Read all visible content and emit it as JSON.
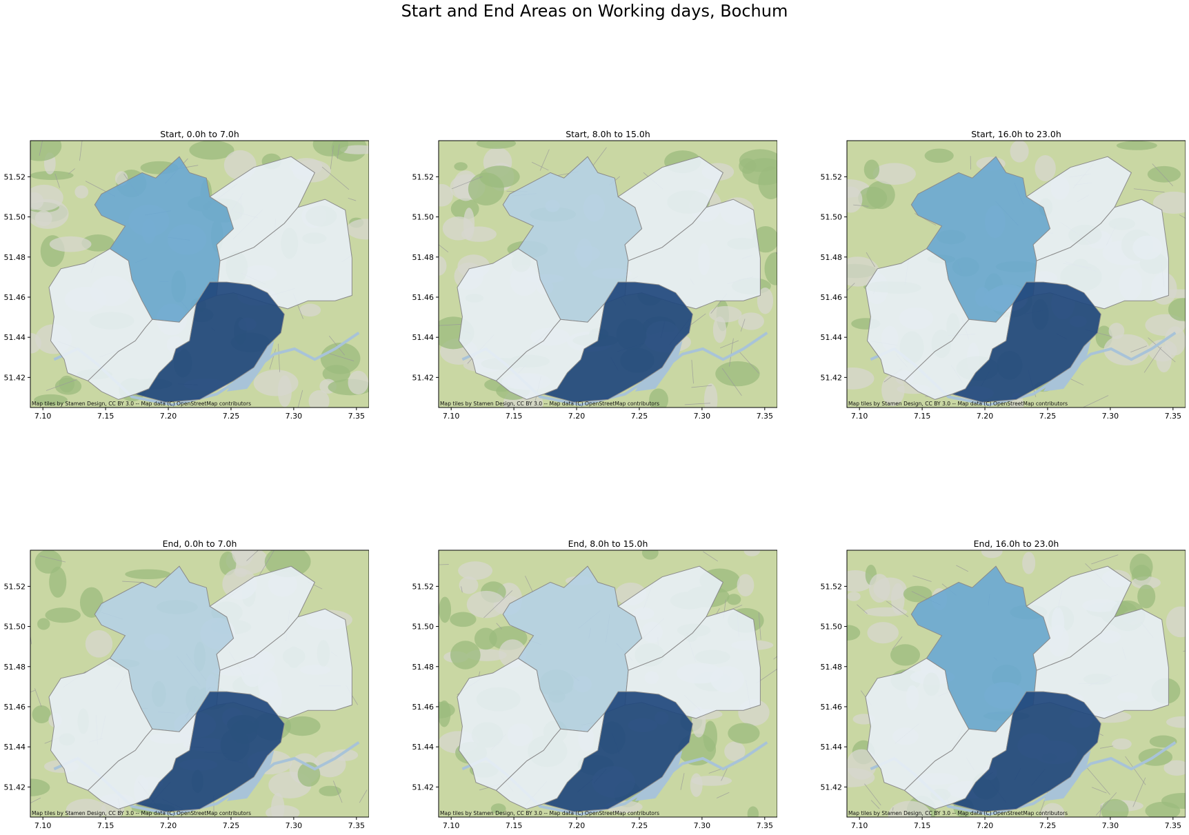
{
  "figure": {
    "title": "Start and End Areas on Working days, Bochum"
  },
  "attribution": "Map tiles by Stamen Design, CC BY 3.0 -- Map data (C) OpenStreetMap contributors",
  "colors": {
    "very_light": "#e8eff6",
    "light": "#b5d2e6",
    "medium": "#6aa8d3",
    "dark": "#21487d",
    "basemap_green": "#c9d7a3",
    "basemap_forest": "#9bbb7d",
    "water": "#a8c3d8",
    "boundary": "#8a8a8a"
  },
  "chart_data": [
    {
      "type": "map",
      "title": "Start, 0.0h to 7.0h",
      "xlim": [
        7.09,
        7.36
      ],
      "ylim": [
        51.405,
        51.538
      ],
      "xticks": [
        "7.10",
        "7.15",
        "7.20",
        "7.25",
        "7.30",
        "7.35"
      ],
      "yticks": [
        "51.42",
        "51.44",
        "51.46",
        "51.48",
        "51.50",
        "51.52"
      ],
      "region_shades": {
        "northwest": "very_light",
        "north_center": "medium",
        "northeast": "very_light",
        "east": "very_light",
        "southwest": "very_light",
        "southeast": "dark"
      }
    },
    {
      "type": "map",
      "title": "Start, 8.0h to 15.0h",
      "xlim": [
        7.09,
        7.36
      ],
      "ylim": [
        51.405,
        51.538
      ],
      "xticks": [
        "7.10",
        "7.15",
        "7.20",
        "7.25",
        "7.30",
        "7.35"
      ],
      "yticks": [
        "51.42",
        "51.44",
        "51.46",
        "51.48",
        "51.50",
        "51.52"
      ],
      "region_shades": {
        "northwest": "very_light",
        "north_center": "light",
        "northeast": "very_light",
        "east": "very_light",
        "southwest": "very_light",
        "southeast": "dark"
      }
    },
    {
      "type": "map",
      "title": "Start, 16.0h to 23.0h",
      "xlim": [
        7.09,
        7.36
      ],
      "ylim": [
        51.405,
        51.538
      ],
      "xticks": [
        "7.10",
        "7.15",
        "7.20",
        "7.25",
        "7.30",
        "7.35"
      ],
      "yticks": [
        "51.42",
        "51.44",
        "51.46",
        "51.48",
        "51.50",
        "51.52"
      ],
      "region_shades": {
        "northwest": "very_light",
        "north_center": "medium",
        "northeast": "very_light",
        "east": "very_light",
        "southwest": "very_light",
        "southeast": "dark"
      }
    },
    {
      "type": "map",
      "title": "End, 0.0h to 7.0h",
      "xlim": [
        7.09,
        7.36
      ],
      "ylim": [
        51.405,
        51.538
      ],
      "xticks": [
        "7.10",
        "7.15",
        "7.20",
        "7.25",
        "7.30",
        "7.35"
      ],
      "yticks": [
        "51.42",
        "51.44",
        "51.46",
        "51.48",
        "51.50",
        "51.52"
      ],
      "region_shades": {
        "northwest": "very_light",
        "north_center": "light",
        "northeast": "very_light",
        "east": "very_light",
        "southwest": "very_light",
        "southeast": "dark"
      }
    },
    {
      "type": "map",
      "title": "End, 8.0h to 15.0h",
      "xlim": [
        7.09,
        7.36
      ],
      "ylim": [
        51.405,
        51.538
      ],
      "xticks": [
        "7.10",
        "7.15",
        "7.20",
        "7.25",
        "7.30",
        "7.35"
      ],
      "yticks": [
        "51.42",
        "51.44",
        "51.46",
        "51.48",
        "51.50",
        "51.52"
      ],
      "region_shades": {
        "northwest": "very_light",
        "north_center": "light",
        "northeast": "very_light",
        "east": "very_light",
        "southwest": "very_light",
        "southeast": "dark"
      }
    },
    {
      "type": "map",
      "title": "End, 16.0h to 23.0h",
      "xlim": [
        7.09,
        7.36
      ],
      "ylim": [
        51.405,
        51.538
      ],
      "xticks": [
        "7.10",
        "7.15",
        "7.20",
        "7.25",
        "7.30",
        "7.35"
      ],
      "yticks": [
        "51.42",
        "51.44",
        "51.46",
        "51.48",
        "51.50",
        "51.52"
      ],
      "region_shades": {
        "northwest": "very_light",
        "north_center": "medium",
        "northeast": "very_light",
        "east": "very_light",
        "southwest": "very_light",
        "southeast": "dark"
      }
    }
  ]
}
